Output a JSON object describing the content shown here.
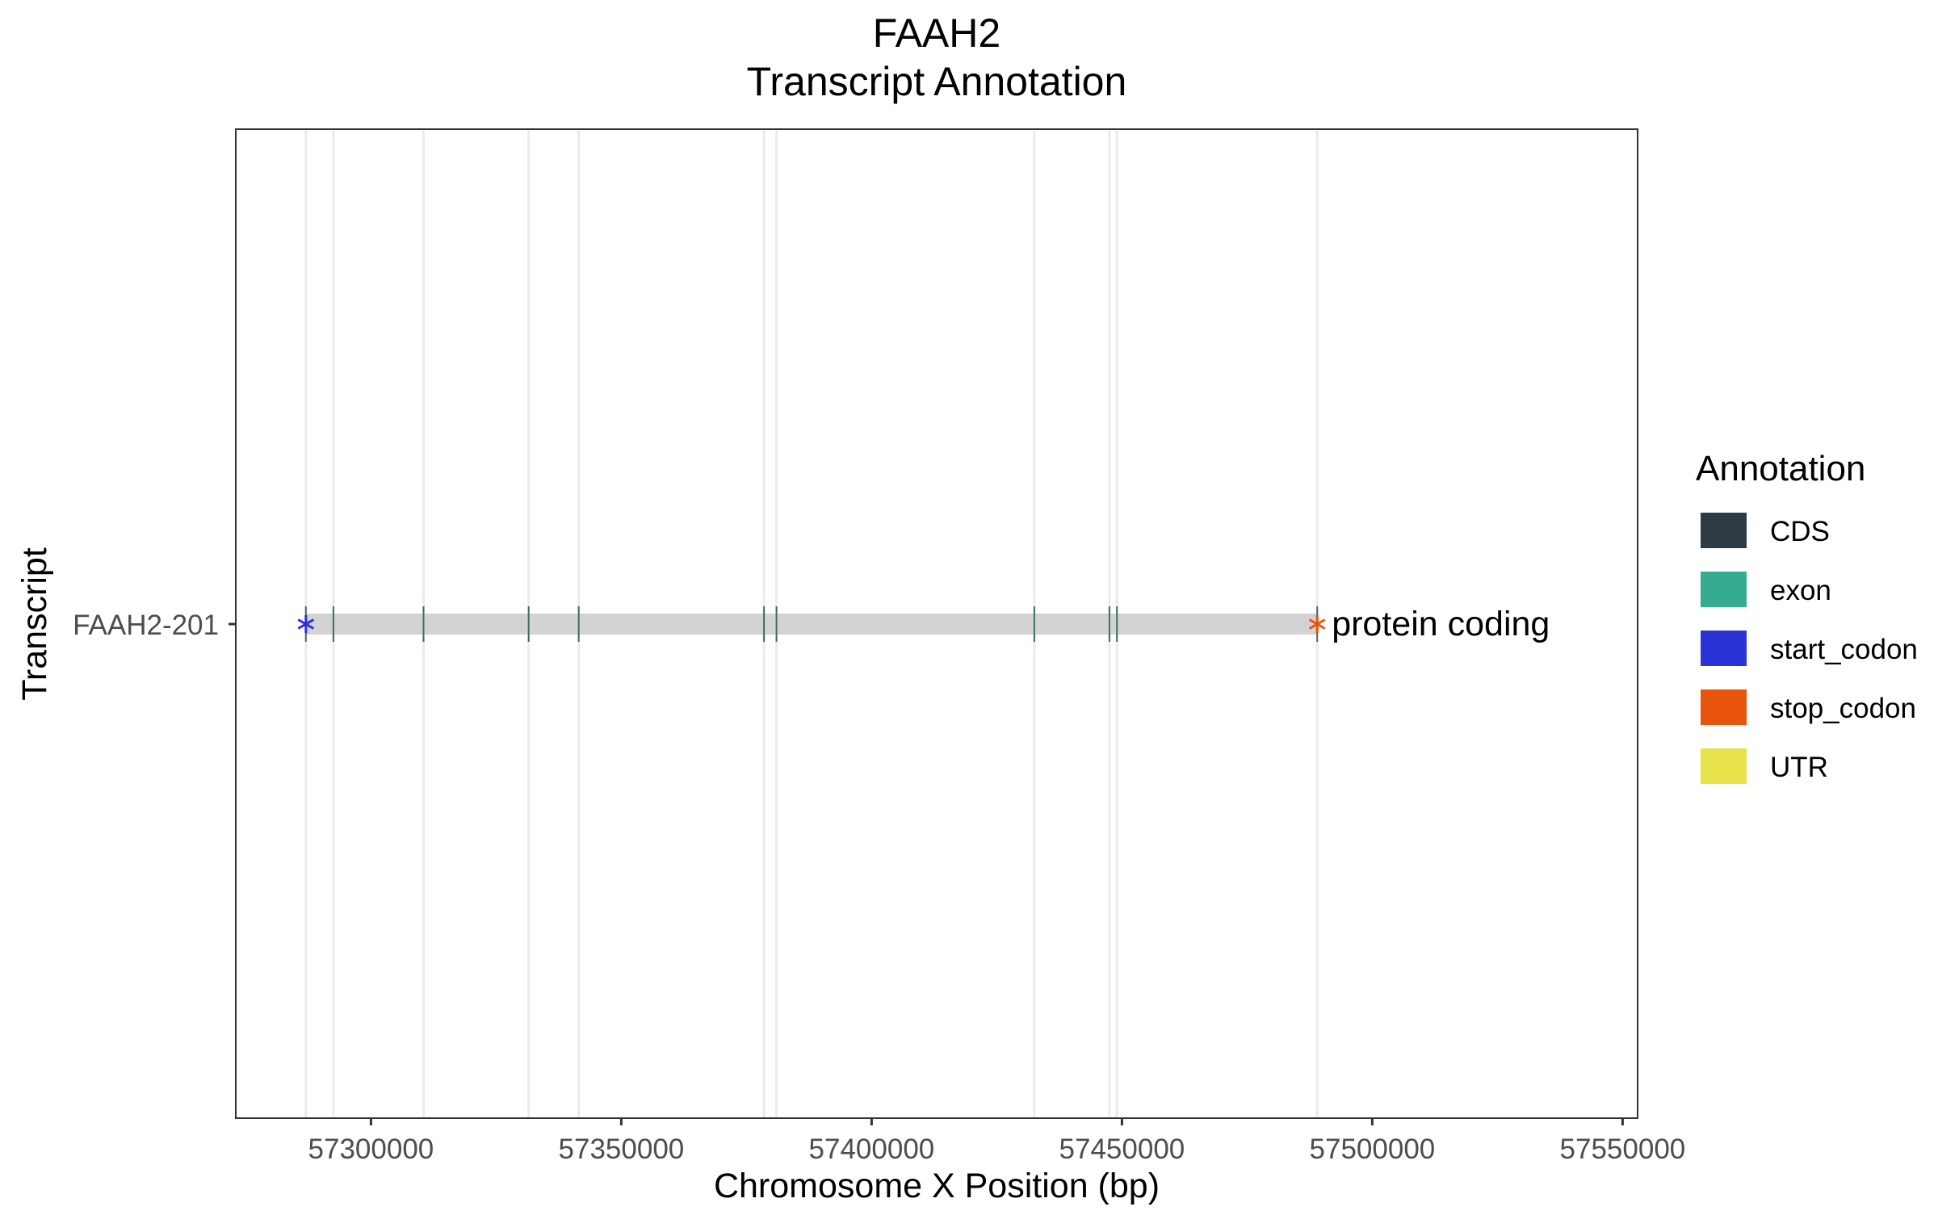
{
  "chart_data": {
    "type": "gene-track",
    "title": "FAAH2",
    "subtitle": "Transcript Annotation",
    "xlabel": "Chromosome X Position (bp)",
    "ylabel": "Transcript",
    "xlim": [
      57273000,
      57553000
    ],
    "xticks": [
      57300000,
      57350000,
      57400000,
      57450000,
      57500000,
      57550000
    ],
    "xtick_labels": [
      "57300000",
      "57350000",
      "57400000",
      "57450000",
      "57500000",
      "57550000"
    ],
    "grid": "vertical lines at exon positions",
    "transcripts": [
      {
        "name": "FAAH2-201",
        "biotype_label": "protein coding",
        "start": 57287000,
        "end": 57489000,
        "start_codon": 57287000,
        "stop_codon": 57489000,
        "exons": [
          57287000,
          57292500,
          57310500,
          57331500,
          57341500,
          57378500,
          57381000,
          57432500,
          57447500,
          57449000,
          57489000
        ]
      }
    ],
    "legend": {
      "title": "Annotation",
      "position": "right",
      "items": [
        {
          "label": "CDS",
          "color": "#2e3a44"
        },
        {
          "label": "exon",
          "color": "#35ac90"
        },
        {
          "label": "start_codon",
          "color": "#2b32d6"
        },
        {
          "label": "stop_codon",
          "color": "#e9540c"
        },
        {
          "label": "UTR",
          "color": "#e7e24a"
        }
      ]
    },
    "colors": {
      "track": "#d3d3d3",
      "grid": "#ebebeb",
      "panel_border": "#333333"
    }
  }
}
